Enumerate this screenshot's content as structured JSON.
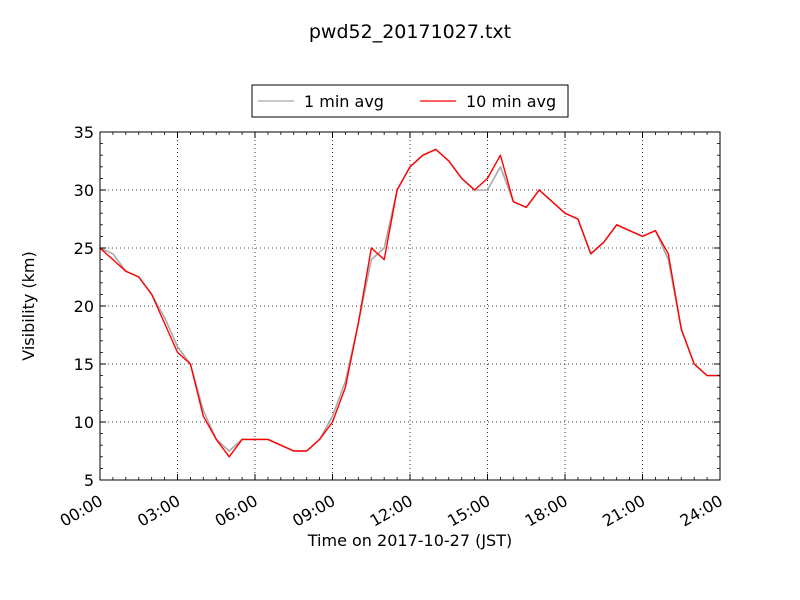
{
  "chart_data": {
    "type": "line",
    "title": "pwd52_20171027.txt",
    "xlabel": "Time on 2017-10-27 (JST)",
    "ylabel": "Visibility (km)",
    "xlim": [
      "00:00",
      "24:00"
    ],
    "ylim": [
      5,
      35
    ],
    "x_ticks": [
      "00:00",
      "03:00",
      "06:00",
      "09:00",
      "12:00",
      "15:00",
      "18:00",
      "21:00",
      "24:00"
    ],
    "y_ticks": [
      5,
      10,
      15,
      20,
      25,
      30,
      35
    ],
    "grid": true,
    "legend_position": "top-center",
    "x": [
      "00:00",
      "00:30",
      "01:00",
      "01:30",
      "02:00",
      "02:30",
      "03:00",
      "03:30",
      "04:00",
      "04:30",
      "05:00",
      "05:30",
      "06:00",
      "06:30",
      "07:00",
      "07:30",
      "08:00",
      "08:30",
      "09:00",
      "09:30",
      "10:00",
      "10:30",
      "11:00",
      "11:30",
      "12:00",
      "12:30",
      "13:00",
      "13:30",
      "14:00",
      "14:30",
      "15:00",
      "15:30",
      "16:00",
      "16:30",
      "17:00",
      "17:30",
      "18:00",
      "18:30",
      "19:00",
      "19:30",
      "20:00",
      "20:30",
      "21:00",
      "21:30",
      "22:00",
      "22:30",
      "23:00",
      "23:30",
      "24:00"
    ],
    "series": [
      {
        "name": "1 min avg",
        "color": "#a9a9a9",
        "values": [
          25.0,
          24.5,
          23.0,
          22.5,
          21.0,
          19.0,
          16.5,
          15.0,
          11.0,
          8.5,
          7.5,
          8.5,
          8.5,
          8.5,
          8.0,
          7.5,
          7.5,
          8.5,
          10.5,
          13.5,
          18.5,
          24.0,
          25.0,
          30.0,
          32.0,
          33.0,
          33.5,
          32.5,
          31.0,
          30.0,
          30.0,
          32.0,
          29.0,
          28.5,
          30.0,
          29.0,
          28.0,
          27.5,
          24.5,
          25.5,
          27.0,
          26.5,
          26.0,
          26.5,
          24.0,
          18.0,
          15.0,
          14.0,
          14.0
        ]
      },
      {
        "name": "10 min avg",
        "color": "#ff0000",
        "values": [
          25.0,
          24.0,
          23.0,
          22.5,
          21.0,
          18.5,
          16.0,
          15.0,
          10.5,
          8.5,
          7.0,
          8.5,
          8.5,
          8.5,
          8.0,
          7.5,
          7.5,
          8.5,
          10.0,
          13.0,
          18.5,
          25.0,
          24.0,
          30.0,
          32.0,
          33.0,
          33.5,
          32.5,
          31.0,
          30.0,
          31.0,
          33.0,
          29.0,
          28.5,
          30.0,
          29.0,
          28.0,
          27.5,
          24.5,
          25.5,
          27.0,
          26.5,
          26.0,
          26.5,
          24.5,
          18.0,
          15.0,
          14.0,
          14.0
        ]
      }
    ]
  }
}
